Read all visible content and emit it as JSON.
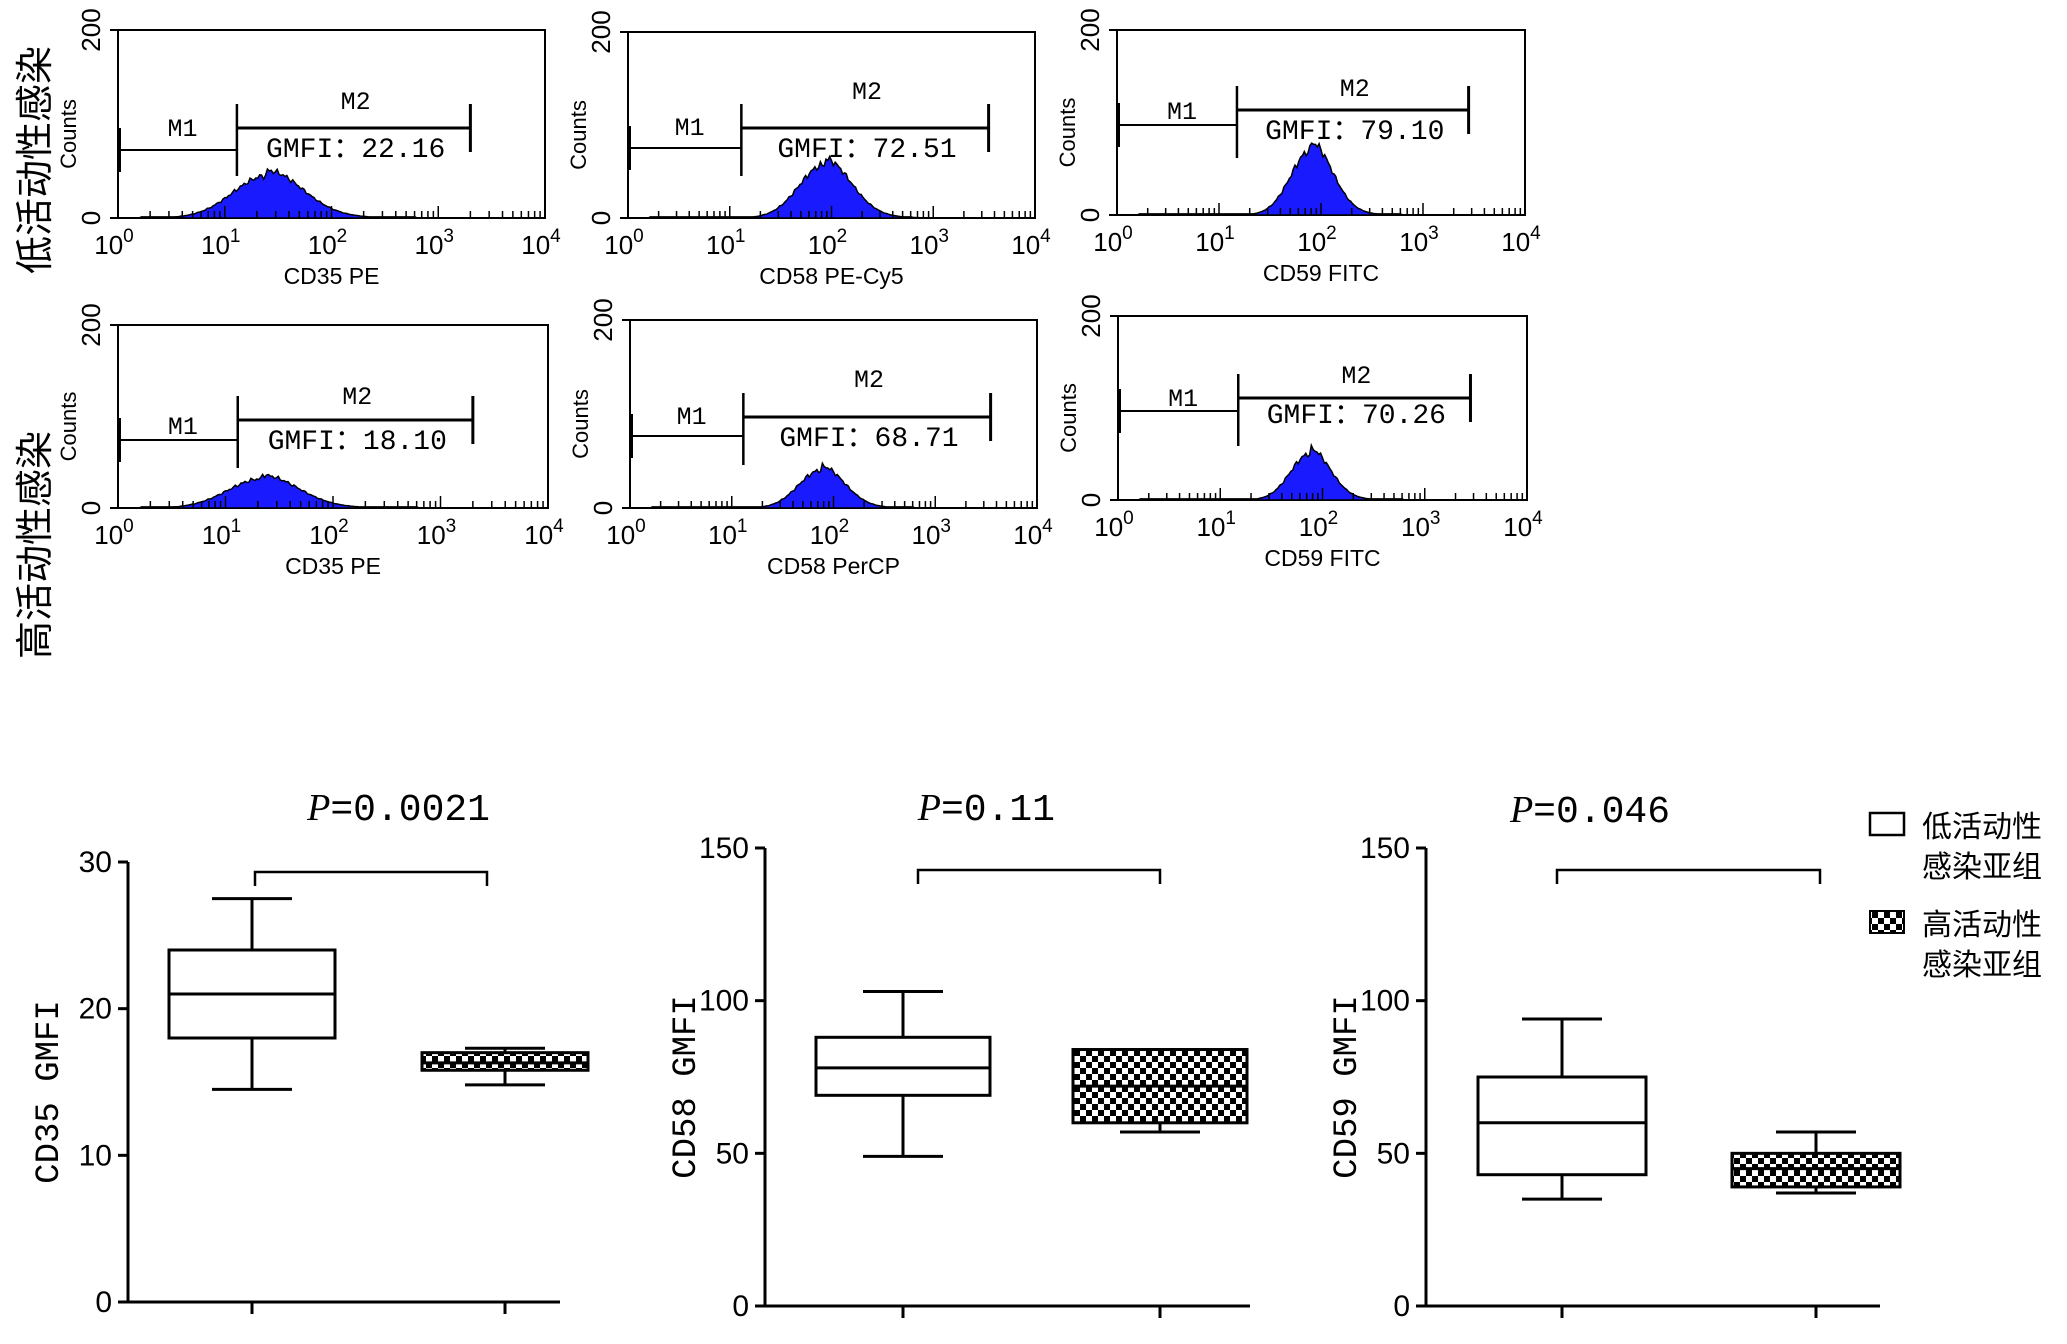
{
  "figure": {
    "row_labels": [
      "低活动性感染",
      "高活动性感染"
    ],
    "legend": [
      {
        "pattern": "open",
        "line1": "低活动性",
        "line2": "感染亚组"
      },
      {
        "pattern": "checker",
        "line1": "高活动性",
        "line2": "感染亚组"
      }
    ]
  },
  "chart_data": [
    {
      "type": "area",
      "group": "低活动性感染",
      "xlabel": "CD35 PE",
      "ylabel": "Counts",
      "x_scale": "log",
      "xlim": [
        1,
        10000
      ],
      "ylim": [
        0,
        200
      ],
      "y_ticks": [
        "0",
        "200"
      ],
      "x_ticks": [
        "10^0",
        "10^1",
        "10^2",
        "10^3",
        "10^4"
      ],
      "peak": 25,
      "peak_count": 45,
      "spread": 0.32,
      "markers": {
        "M1": [
          1,
          13
        ],
        "M2": [
          13,
          2000
        ]
      },
      "M1_label": "M1",
      "M2_label": "M2",
      "gmfi_label": "GMFI：22.16",
      "gmfi": 22.16,
      "color": "#1a1aff"
    },
    {
      "type": "area",
      "group": "低活动性感染",
      "xlabel": "CD58 PE-Cy5",
      "ylabel": "Counts",
      "x_scale": "log",
      "xlim": [
        1,
        10000
      ],
      "ylim": [
        0,
        200
      ],
      "y_ticks": [
        "0",
        "200"
      ],
      "x_ticks": [
        "10^0",
        "10^1",
        "10^2",
        "10^3",
        "10^4"
      ],
      "peak": 85,
      "peak_count": 57,
      "spread": 0.25,
      "markers": {
        "M1": [
          1,
          13
        ],
        "M2": [
          13,
          3500
        ]
      },
      "M1_label": "M1",
      "M2_label": "M2",
      "gmfi_label": "GMFI：72.51",
      "gmfi": 72.51,
      "color": "#1a1aff"
    },
    {
      "type": "area",
      "group": "低活动性感染",
      "xlabel": "CD59 FITC",
      "ylabel": "Counts",
      "x_scale": "log",
      "xlim": [
        1,
        10000
      ],
      "ylim": [
        0,
        200
      ],
      "y_ticks": [
        "0",
        "200"
      ],
      "x_ticks": [
        "10^0",
        "10^1",
        "10^2",
        "10^3",
        "10^4"
      ],
      "peak": 80,
      "peak_count": 70,
      "spread": 0.2,
      "markers": {
        "M1": [
          1,
          15
        ],
        "M2": [
          15,
          2800
        ]
      },
      "M1_label": "M1",
      "M2_label": "M2",
      "gmfi_label": "GMFI：79.10",
      "gmfi": 79.1,
      "color": "#1a1aff"
    },
    {
      "type": "area",
      "group": "高活动性感染",
      "xlabel": "CD35 PE",
      "ylabel": "Counts",
      "x_scale": "log",
      "xlim": [
        1,
        10000
      ],
      "ylim": [
        0,
        200
      ],
      "y_ticks": [
        "0",
        "200"
      ],
      "x_ticks": [
        "10^0",
        "10^1",
        "10^2",
        "10^3",
        "10^4"
      ],
      "peak": 22,
      "peak_count": 32,
      "spread": 0.32,
      "markers": {
        "M1": [
          1,
          13
        ],
        "M2": [
          13,
          2000
        ]
      },
      "M1_label": "M1",
      "M2_label": "M2",
      "gmfi_label": "GMFI：18.10",
      "gmfi": 18.1,
      "color": "#1a1aff"
    },
    {
      "type": "area",
      "group": "高活动性感染",
      "xlabel": "CD58 PerCP",
      "ylabel": "Counts",
      "x_scale": "log",
      "xlim": [
        1,
        10000
      ],
      "ylim": [
        0,
        200
      ],
      "y_ticks": [
        "0",
        "200"
      ],
      "x_ticks": [
        "10^0",
        "10^1",
        "10^2",
        "10^3",
        "10^4"
      ],
      "peak": 75,
      "peak_count": 40,
      "spread": 0.22,
      "markers": {
        "M1": [
          1,
          13
        ],
        "M2": [
          13,
          3500
        ]
      },
      "M1_label": "M1",
      "M2_label": "M2",
      "gmfi_label": "GMFI：68.71",
      "gmfi": 68.71,
      "color": "#1a1aff"
    },
    {
      "type": "area",
      "group": "高活动性感染",
      "xlabel": "CD59 FITC",
      "ylabel": "Counts",
      "x_scale": "log",
      "xlim": [
        1,
        10000
      ],
      "ylim": [
        0,
        200
      ],
      "y_ticks": [
        "0",
        "200"
      ],
      "x_ticks": [
        "10^0",
        "10^1",
        "10^2",
        "10^3",
        "10^4"
      ],
      "peak": 75,
      "peak_count": 50,
      "spread": 0.19,
      "markers": {
        "M1": [
          1,
          15
        ],
        "M2": [
          15,
          2800
        ]
      },
      "M1_label": "M1",
      "M2_label": "M2",
      "gmfi_label": "GMFI：70.26",
      "gmfi": 70.26,
      "color": "#1a1aff"
    },
    {
      "type": "box",
      "ylabel": "CD35 GMFI",
      "ylim": [
        0,
        30
      ],
      "y_ticks": [
        "0",
        "10",
        "20",
        "30"
      ],
      "p_value": "=0.0021",
      "p_symbol": "P",
      "series": [
        {
          "name": "低活动性感染亚组",
          "min": 14.5,
          "q1": 18,
          "median": 21,
          "q3": 24,
          "max": 27.5
        },
        {
          "name": "高活动性感染亚组",
          "min": 14.8,
          "q1": 15.8,
          "median": 16.3,
          "q3": 17,
          "max": 17.3
        }
      ]
    },
    {
      "type": "box",
      "ylabel": "CD58 GMFI",
      "ylim": [
        0,
        150
      ],
      "y_ticks": [
        "0",
        "50",
        "100",
        "150"
      ],
      "p_value": "=0.11",
      "p_symbol": "P",
      "series": [
        {
          "name": "低活动性感染亚组",
          "min": 49,
          "q1": 69,
          "median": 78,
          "q3": 88,
          "max": 103
        },
        {
          "name": "高活动性感染亚组",
          "min": 57,
          "q1": 60,
          "median": 72,
          "q3": 84,
          "max": 84
        }
      ]
    },
    {
      "type": "box",
      "ylabel": "CD59 GMFI",
      "ylim": [
        0,
        150
      ],
      "y_ticks": [
        "0",
        "50",
        "100",
        "150"
      ],
      "p_value": "=0.046",
      "p_symbol": "P",
      "series": [
        {
          "name": "低活动性感染亚组",
          "min": 35,
          "q1": 43,
          "median": 60,
          "q3": 75,
          "max": 94
        },
        {
          "name": "高活动性感染亚组",
          "min": 37,
          "q1": 39,
          "median": 45,
          "q3": 50,
          "max": 57
        }
      ]
    }
  ]
}
